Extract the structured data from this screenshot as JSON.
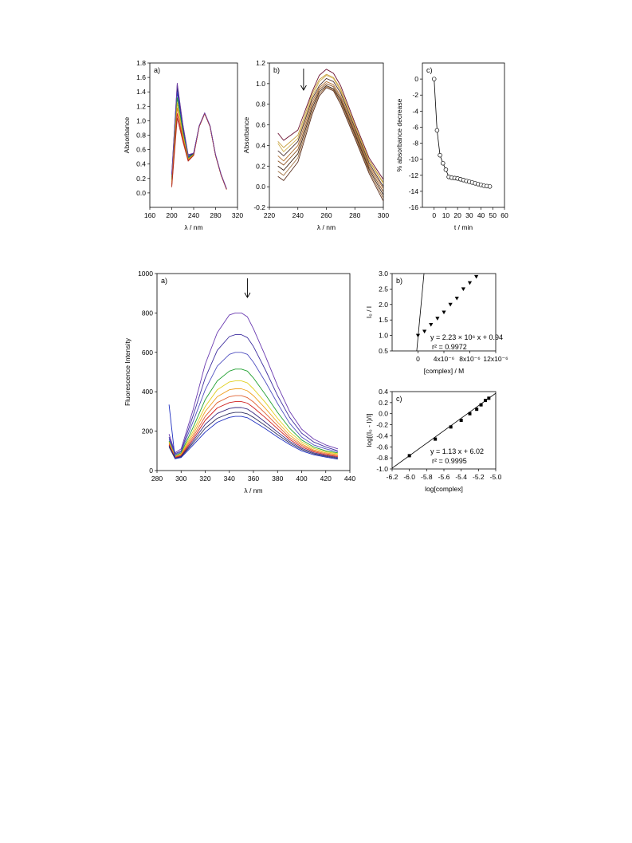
{
  "panels": [
    {
      "id": "top-a",
      "label": "a)",
      "xlabel": "λ / nm",
      "ylabel": "Absorbance",
      "xlim": [
        160,
        320
      ],
      "ylim": [
        -0.2,
        1.8
      ],
      "xticks": [
        160,
        200,
        240,
        280,
        320
      ],
      "yticks": [
        0.0,
        0.2,
        0.4,
        0.6,
        0.8,
        1.0,
        1.2,
        1.4,
        1.6,
        1.8
      ],
      "ytick_labels": [
        "0.0",
        "0.2",
        "0.4",
        "0.6",
        "0.8",
        "1.0",
        "1.2",
        "1.4",
        "1.6",
        "1.8"
      ],
      "xtick_labels": [
        "160",
        "200",
        "240",
        "280",
        "320"
      ]
    },
    {
      "id": "top-b",
      "label": "b)",
      "xlabel": "λ / nm",
      "ylabel": "Absorbance",
      "xlim": [
        220,
        300
      ],
      "ylim": [
        -0.2,
        1.2
      ],
      "xticks": [
        220,
        240,
        260,
        280,
        300
      ],
      "yticks": [
        -0.2,
        0.0,
        0.2,
        0.4,
        0.6,
        0.8,
        1.0,
        1.2
      ],
      "ytick_labels": [
        "-0.2",
        "0.0",
        "0.2",
        "0.4",
        "0.6",
        "0.8",
        "1.0",
        "1.2"
      ],
      "xtick_labels": [
        "220",
        "240",
        "260",
        "280",
        "300"
      ]
    },
    {
      "id": "top-c",
      "label": "c)",
      "xlabel": "t / min",
      "ylabel": "% absorbance decrease",
      "xlim": [
        -10,
        60
      ],
      "ylim": [
        -16,
        2
      ],
      "xticks": [
        0,
        10,
        20,
        30,
        40,
        50,
        60
      ],
      "yticks": [
        0,
        -2,
        -4,
        -6,
        -8,
        -10,
        -12,
        -14,
        -16
      ],
      "ytick_labels": [
        "0",
        "-2",
        "-4",
        "-6",
        "-8",
        "-10",
        "-12",
        "-14",
        "-16"
      ],
      "xtick_labels": [
        "0",
        "10",
        "20",
        "30",
        "40",
        "50",
        "60"
      ]
    },
    {
      "id": "bottom-a",
      "label": "a)",
      "xlabel": "λ / nm",
      "ylabel": "Fluorescence Intensity",
      "xlim": [
        280,
        440
      ],
      "ylim": [
        0,
        1000
      ],
      "xticks": [
        280,
        300,
        320,
        340,
        360,
        380,
        400,
        420,
        440
      ],
      "yticks": [
        0,
        200,
        400,
        600,
        800,
        1000
      ],
      "ytick_labels": [
        "0",
        "200",
        "400",
        "600",
        "800",
        "1000"
      ],
      "xtick_labels": [
        "280",
        "300",
        "320",
        "340",
        "360",
        "380",
        "400",
        "420",
        "440"
      ]
    },
    {
      "id": "bottom-b",
      "label": "b)",
      "xlabel": "[complex] / M",
      "ylabel": "I₀ / I",
      "xlim": [
        -4e-06,
        1.2e-05
      ],
      "ylim": [
        0.5,
        3.0
      ],
      "xticks": [
        0,
        4e-06,
        8e-06,
        1.2e-05
      ],
      "yticks": [
        0.5,
        1.0,
        1.5,
        2.0,
        2.5,
        3.0
      ],
      "ytick_labels": [
        "0.5",
        "1.0",
        "1.5",
        "2.0",
        "2.5",
        "3.0"
      ],
      "xtick_labels": [
        "0",
        "4x10⁻⁶",
        "8x10⁻⁶",
        "12x10⁻⁶"
      ],
      "equation": "y = 2.23 × 10⁶ x + 0.94",
      "r2": "r² = 0.9972"
    },
    {
      "id": "bottom-c",
      "label": "c)",
      "xlabel": "log[complex]",
      "ylabel": "log[(I₀ - I)/I]",
      "xlim": [
        -6.2,
        -5.0
      ],
      "ylim": [
        -1.0,
        0.4
      ],
      "xticks": [
        -6.2,
        -6.0,
        -5.8,
        -5.6,
        -5.4,
        -5.2,
        -5.0
      ],
      "yticks": [
        -1.0,
        -0.8,
        -0.6,
        -0.4,
        -0.2,
        0.0,
        0.2,
        0.4
      ],
      "ytick_labels": [
        "-1.0",
        "-0.8",
        "-0.6",
        "-0.4",
        "-0.2",
        "0.0",
        "0.2",
        "0.4"
      ],
      "xtick_labels": [
        "-6.2",
        "-6.0",
        "-5.8",
        "-5.6",
        "-5.4",
        "-5.2",
        "-5.0"
      ],
      "equation": "y = 1.13 x + 6.02",
      "r2": "r² = 0.9995"
    }
  ],
  "chart_data": [
    {
      "type": "line",
      "panel": "top-a",
      "x": [
        200,
        210,
        220,
        230,
        240,
        250,
        260,
        270,
        280,
        290,
        300
      ],
      "series_colors": [
        "#2a2a9a",
        "#1a1a70",
        "#3040c0",
        "#20a030",
        "#d0c020",
        "#e08020",
        "#d02020",
        "#b03020",
        "#7040a0"
      ],
      "series": [
        {
          "values": [
            0.25,
            1.5,
            0.95,
            0.52,
            0.55,
            0.92,
            1.1,
            0.92,
            0.52,
            0.25,
            0.05
          ]
        },
        {
          "values": [
            0.22,
            1.45,
            0.92,
            0.5,
            0.55,
            0.92,
            1.1,
            0.92,
            0.52,
            0.25,
            0.05
          ]
        },
        {
          "values": [
            0.2,
            1.4,
            0.88,
            0.49,
            0.54,
            0.92,
            1.1,
            0.92,
            0.52,
            0.25,
            0.05
          ]
        },
        {
          "values": [
            0.18,
            1.32,
            0.85,
            0.48,
            0.54,
            0.92,
            1.1,
            0.92,
            0.52,
            0.25,
            0.05
          ]
        },
        {
          "values": [
            0.15,
            1.25,
            0.82,
            0.47,
            0.53,
            0.92,
            1.1,
            0.92,
            0.52,
            0.25,
            0.05
          ]
        },
        {
          "values": [
            0.12,
            1.18,
            0.78,
            0.46,
            0.53,
            0.92,
            1.1,
            0.92,
            0.52,
            0.25,
            0.05
          ]
        },
        {
          "values": [
            0.1,
            1.1,
            0.75,
            0.45,
            0.52,
            0.92,
            1.1,
            0.92,
            0.52,
            0.25,
            0.05
          ]
        },
        {
          "values": [
            0.08,
            1.04,
            0.72,
            0.44,
            0.52,
            0.92,
            1.1,
            0.92,
            0.52,
            0.25,
            0.05
          ]
        },
        {
          "values": [
            0.26,
            1.52,
            0.96,
            0.53,
            0.55,
            0.93,
            1.11,
            0.93,
            0.53,
            0.26,
            0.06
          ]
        }
      ]
    },
    {
      "type": "line",
      "panel": "top-b",
      "x": [
        226,
        230,
        240,
        250,
        255,
        260,
        265,
        270,
        280,
        290,
        300
      ],
      "series_colors": [
        "#6a1030",
        "#c8a040",
        "#d0b050",
        "#4a3030",
        "#b07030",
        "#8a5020",
        "#3a2010",
        "#a07040",
        "#5a3020"
      ],
      "series": [
        {
          "values": [
            0.52,
            0.45,
            0.55,
            0.92,
            1.08,
            1.14,
            1.1,
            0.98,
            0.62,
            0.28,
            0.07
          ]
        },
        {
          "values": [
            0.44,
            0.38,
            0.5,
            0.9,
            1.04,
            1.09,
            1.06,
            0.95,
            0.6,
            0.26,
            0.04
          ]
        },
        {
          "values": [
            0.42,
            0.34,
            0.47,
            0.87,
            1.02,
            1.08,
            1.05,
            0.93,
            0.58,
            0.25,
            0.03
          ]
        },
        {
          "values": [
            0.35,
            0.3,
            0.44,
            0.85,
            0.98,
            1.05,
            1.02,
            0.91,
            0.57,
            0.23,
            0.0
          ]
        },
        {
          "values": [
            0.3,
            0.25,
            0.4,
            0.82,
            0.96,
            1.02,
            0.99,
            0.88,
            0.55,
            0.21,
            -0.02
          ]
        },
        {
          "values": [
            0.25,
            0.21,
            0.36,
            0.79,
            0.94,
            1.0,
            0.97,
            0.86,
            0.53,
            0.19,
            -0.05
          ]
        },
        {
          "values": [
            0.2,
            0.16,
            0.32,
            0.76,
            0.92,
            0.98,
            0.95,
            0.84,
            0.51,
            0.17,
            -0.08
          ]
        },
        {
          "values": [
            0.15,
            0.11,
            0.28,
            0.73,
            0.9,
            0.97,
            0.94,
            0.82,
            0.49,
            0.15,
            -0.11
          ]
        },
        {
          "values": [
            0.1,
            0.06,
            0.24,
            0.7,
            0.88,
            0.96,
            0.93,
            0.8,
            0.47,
            0.13,
            -0.14
          ]
        }
      ]
    },
    {
      "type": "scatter",
      "panel": "top-c",
      "x": [
        0,
        2.5,
        5,
        7.5,
        10,
        12.5,
        15,
        17.5,
        20,
        22.5,
        25,
        27.5,
        30,
        32.5,
        35,
        37.5,
        40,
        42.5,
        45,
        47.5
      ],
      "values": [
        0,
        -6.4,
        -9.5,
        -10.5,
        -11.3,
        -12.2,
        -12.3,
        -12.35,
        -12.4,
        -12.5,
        -12.6,
        -12.7,
        -12.8,
        -12.9,
        -13.0,
        -13.1,
        -13.2,
        -13.3,
        -13.35,
        -13.4
      ],
      "marker": "open-circle",
      "connected": true
    },
    {
      "type": "line",
      "panel": "bottom-a",
      "x": [
        290,
        295,
        300,
        310,
        320,
        330,
        340,
        345,
        350,
        355,
        360,
        370,
        380,
        390,
        400,
        410,
        420,
        430
      ],
      "series_colors": [
        "#6a3ab0",
        "#4030a0",
        "#5050c0",
        "#20a030",
        "#e0d020",
        "#f0a020",
        "#e06030",
        "#d02020",
        "#3a2a80",
        "#303060",
        "#2030c0"
      ],
      "series": [
        {
          "values": [
            185,
            90,
            110,
            310,
            540,
            700,
            790,
            800,
            800,
            780,
            720,
            580,
            430,
            300,
            210,
            160,
            130,
            110
          ]
        },
        {
          "values": [
            170,
            85,
            100,
            280,
            470,
            610,
            680,
            690,
            690,
            675,
            630,
            510,
            380,
            270,
            190,
            145,
            120,
            100
          ]
        },
        {
          "values": [
            160,
            80,
            95,
            250,
            410,
            530,
            590,
            600,
            600,
            590,
            550,
            450,
            340,
            240,
            170,
            130,
            110,
            95
          ]
        },
        {
          "values": [
            150,
            75,
            90,
            220,
            360,
            455,
            505,
            515,
            515,
            505,
            470,
            385,
            295,
            215,
            155,
            120,
            100,
            90
          ]
        },
        {
          "values": [
            145,
            72,
            85,
            200,
            325,
            410,
            450,
            455,
            455,
            445,
            415,
            345,
            265,
            195,
            145,
            112,
            95,
            85
          ]
        },
        {
          "values": [
            140,
            70,
            82,
            185,
            300,
            375,
            410,
            415,
            415,
            405,
            380,
            315,
            245,
            180,
            135,
            105,
            90,
            80
          ]
        },
        {
          "values": [
            135,
            68,
            78,
            172,
            275,
            345,
            375,
            380,
            380,
            370,
            348,
            290,
            228,
            168,
            128,
            100,
            85,
            75
          ]
        },
        {
          "values": [
            130,
            65,
            75,
            160,
            255,
            318,
            345,
            350,
            350,
            342,
            320,
            268,
            212,
            158,
            120,
            95,
            80,
            70
          ]
        },
        {
          "values": [
            125,
            62,
            72,
            150,
            235,
            290,
            315,
            320,
            320,
            312,
            292,
            245,
            195,
            148,
            113,
            90,
            76,
            66
          ]
        },
        {
          "values": [
            120,
            60,
            70,
            140,
            215,
            265,
            290,
            295,
            295,
            288,
            270,
            228,
            182,
            140,
            107,
            85,
            72,
            62
          ]
        },
        {
          "values": [
            335,
            60,
            66,
            130,
            195,
            245,
            270,
            275,
            275,
            268,
            250,
            212,
            170,
            132,
            100,
            80,
            68,
            58
          ]
        }
      ]
    },
    {
      "type": "scatter",
      "panel": "bottom-b",
      "x": [
        0,
        1e-06,
        2e-06,
        3e-06,
        4e-06,
        5e-06,
        6e-06,
        7e-06,
        8e-06,
        9e-06
      ],
      "values": [
        1.0,
        1.13,
        1.35,
        1.55,
        1.75,
        2.0,
        2.2,
        2.5,
        2.7,
        2.9
      ],
      "marker": "filled-triangle-down",
      "fit": {
        "slope": 2230000,
        "intercept": 0.94
      }
    },
    {
      "type": "scatter",
      "panel": "bottom-c",
      "x": [
        -6.0,
        -5.7,
        -5.52,
        -5.4,
        -5.3,
        -5.22,
        -5.17,
        -5.12,
        -5.08
      ],
      "values": [
        -0.76,
        -0.46,
        -0.24,
        -0.12,
        0.0,
        0.08,
        0.16,
        0.24,
        0.28
      ],
      "marker": "filled-square",
      "fit": {
        "slope": 1.13,
        "intercept": 6.02
      }
    }
  ]
}
